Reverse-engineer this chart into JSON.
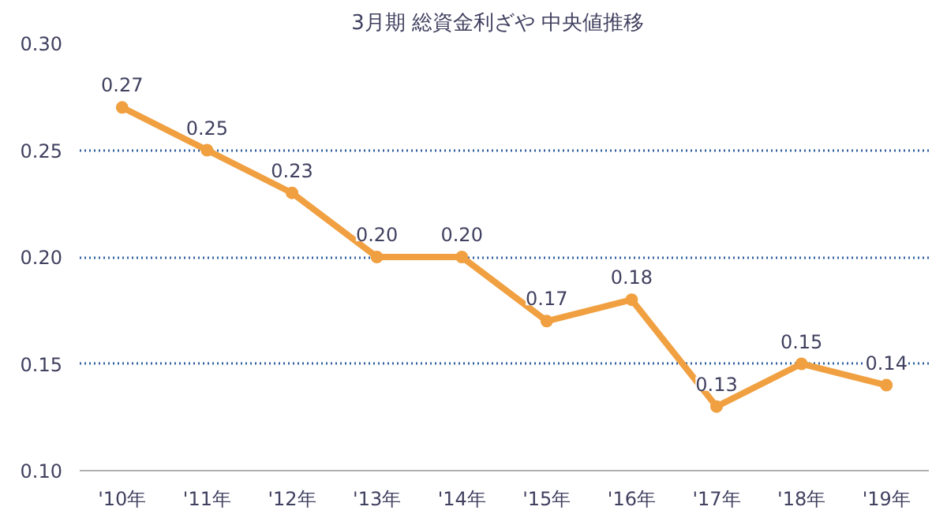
{
  "chart_data": {
    "type": "line",
    "title": "3月期  総資金利ざや  中央値推移",
    "categories": [
      "'10年",
      "'11年",
      "'12年",
      "'13年",
      "'14年",
      "'15年",
      "'16年",
      "'17年",
      "'18年",
      "'19年"
    ],
    "series": [
      {
        "color": "#f0a040",
        "values": [
          0.27,
          0.25,
          0.23,
          0.2,
          0.2,
          0.17,
          0.18,
          0.13,
          0.15,
          0.14
        ],
        "value_labels": [
          "0.27",
          "0.25",
          "0.23",
          "0.20",
          "0.20",
          "0.17",
          "0.18",
          "0.13",
          "0.15",
          "0.14"
        ]
      }
    ],
    "ylim": [
      0.1,
      0.3
    ],
    "yticks": [
      {
        "value": 0.1,
        "label": "0.10"
      },
      {
        "value": 0.15,
        "label": "0.15"
      },
      {
        "value": 0.2,
        "label": "0.20"
      },
      {
        "value": 0.25,
        "label": "0.25"
      },
      {
        "value": 0.3,
        "label": "0.30"
      }
    ],
    "grid": "y",
    "marker": "circle",
    "line_style": "solid"
  }
}
